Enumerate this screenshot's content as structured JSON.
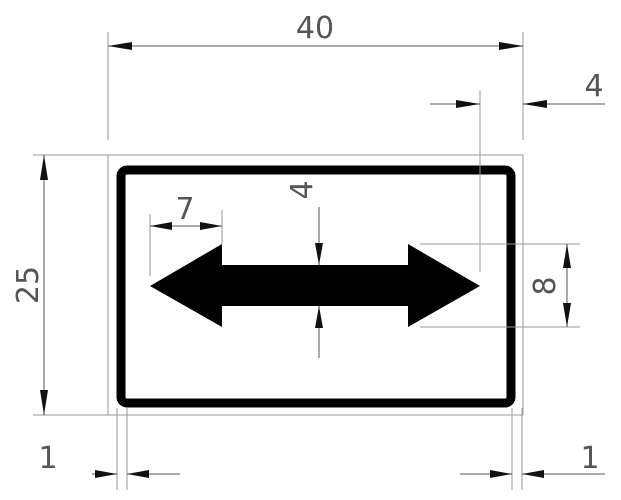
{
  "diagram": {
    "colors": {
      "sign_border": "#000000",
      "sign_arrow": "#000000",
      "dimension": "#555555",
      "extension": "#9a9a9a"
    },
    "dimensions": {
      "overall_width": "40",
      "overall_height": "25",
      "arrow_head_length": "7",
      "arrow_shaft_thickness": "4",
      "arrow_head_height": "8",
      "right_gap": "4",
      "left_border_offset": "1",
      "right_border_offset": "1"
    }
  }
}
